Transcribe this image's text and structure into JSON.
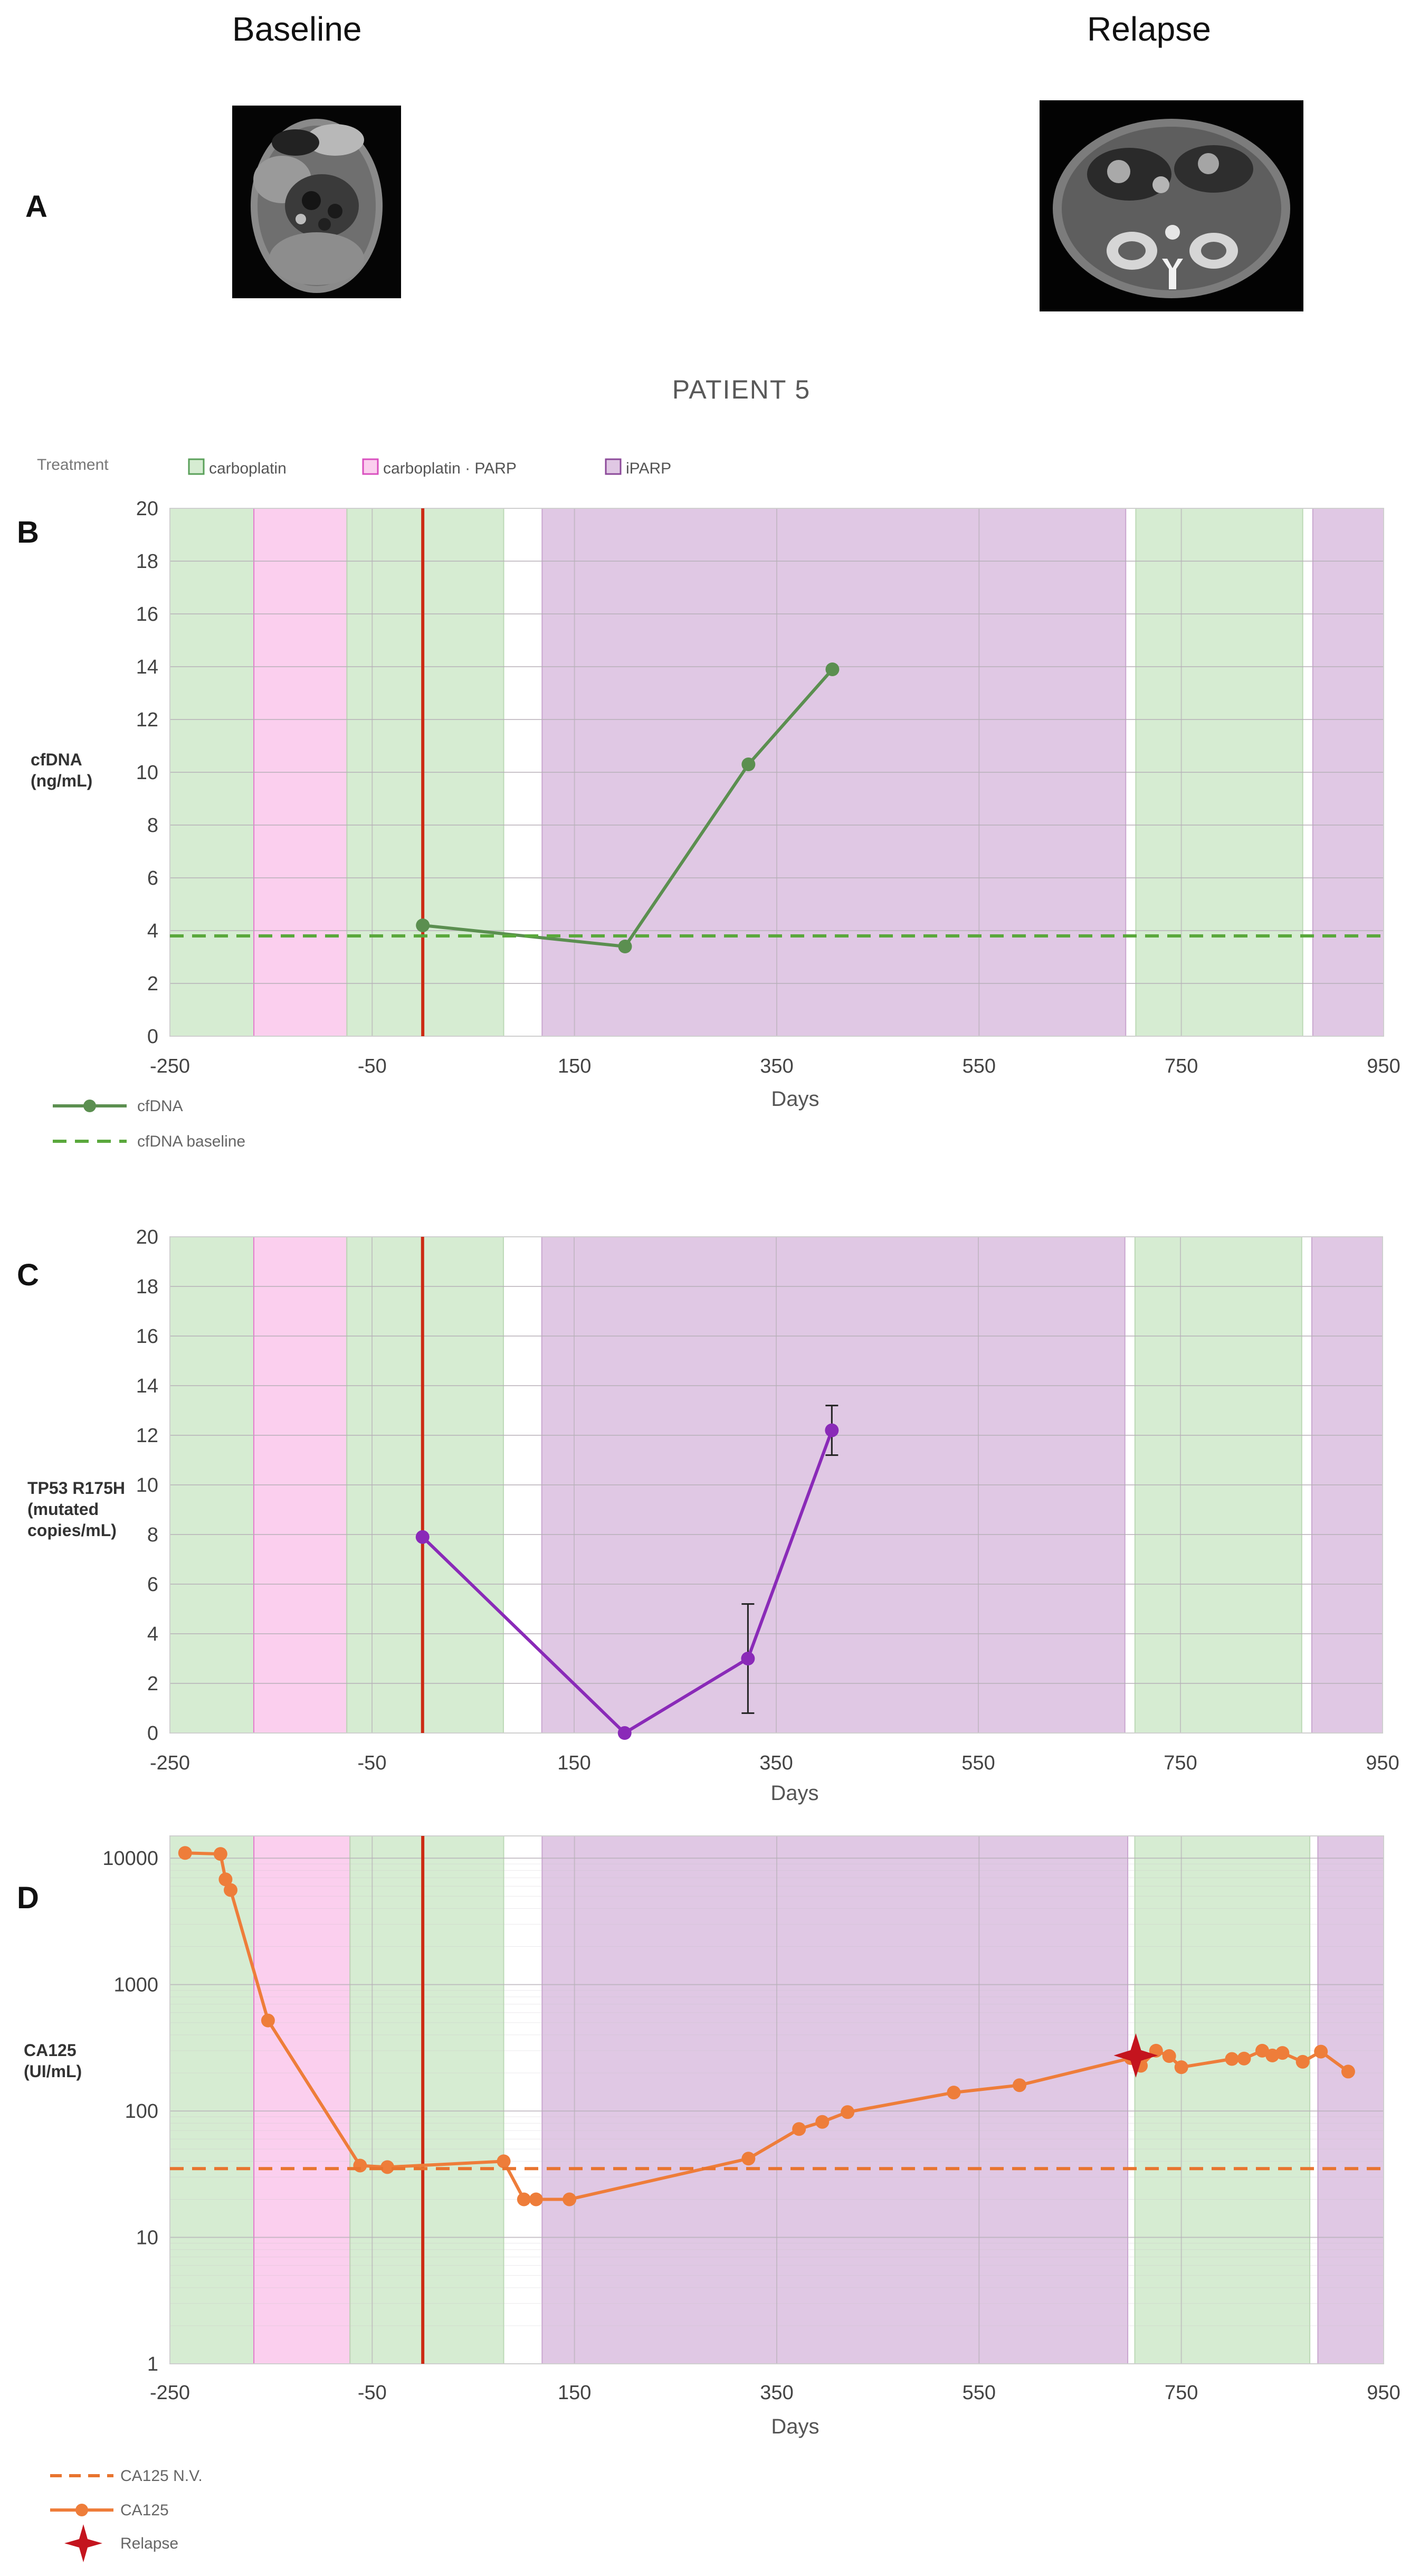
{
  "figure": {
    "panel_a": {
      "letter": "A",
      "baseline_label": "Baseline",
      "relapse_label": "Relapse",
      "image_icon": "ct-scan-image"
    },
    "title": "PATIENT 5",
    "treatment_legend": {
      "label": "Treatment",
      "items": [
        {
          "name": "carboplatin",
          "color": "#d6ecd2",
          "border": "#5aa05a"
        },
        {
          "name": "carboplatin  ·  PARP",
          "color": "#fbcfee",
          "border": "#d94fbf"
        },
        {
          "name": "iPARP",
          "color": "#e0c8e4",
          "border": "#8c4a9a"
        }
      ]
    },
    "colors": {
      "carboplatin": "#d6ecd2",
      "carbo_parp": "#fbcfee",
      "iparp": "#e0c8e4",
      "start_line": "#cc2a14",
      "cfdna_line": "#5b8f50",
      "cfdna_baseline": "#5aa83c",
      "tp53_line": "#8a2ab8",
      "ca125_line": "#ee7d3a",
      "ca125_nv": "#e8742e",
      "relapse_marker": "#c4141e"
    }
  },
  "chart_data": [
    {
      "panel": "B",
      "type": "line",
      "ylabel": "cfDNA\n(ng/mL)",
      "xlabel": "Days",
      "xlim": [
        -250,
        950
      ],
      "ylim": [
        0,
        20
      ],
      "xticks": [
        -250,
        -50,
        150,
        350,
        550,
        750,
        950
      ],
      "yticks": [
        0,
        2,
        4,
        6,
        8,
        10,
        12,
        14,
        16,
        18,
        20
      ],
      "treatment_periods": [
        {
          "treatment": "carboplatin",
          "start": -250,
          "end": -167
        },
        {
          "treatment": "carboplatin + PARP",
          "start": -167,
          "end": -75
        },
        {
          "treatment": "carboplatin",
          "start": -75,
          "end": 80
        },
        {
          "treatment": "iPARP",
          "start": 118,
          "end": 695
        },
        {
          "treatment": "carboplatin",
          "start": 705,
          "end": 870
        },
        {
          "treatment": "iPARP",
          "start": 880,
          "end": 950
        }
      ],
      "treatment_start_day": 0,
      "series": [
        {
          "name": "cfDNA",
          "x": [
            0,
            200,
            322,
            405
          ],
          "y": [
            4.2,
            3.4,
            10.3,
            13.9
          ]
        },
        {
          "name": "cfDNA baseline",
          "style": "dashed",
          "y_constant": 3.8
        }
      ],
      "legend": [
        "cfDNA",
        "cfDNA baseline"
      ]
    },
    {
      "panel": "C",
      "type": "line",
      "ylabel": "TP53 R175H\n(mutated\ncopies/mL)",
      "xlabel": "Days",
      "xlim": [
        -250,
        950
      ],
      "ylim": [
        0,
        20
      ],
      "xticks": [
        -250,
        -50,
        150,
        350,
        550,
        750,
        950
      ],
      "yticks": [
        0,
        2,
        4,
        6,
        8,
        10,
        12,
        14,
        16,
        18,
        20
      ],
      "treatment_periods": [
        {
          "treatment": "carboplatin",
          "start": -250,
          "end": -167
        },
        {
          "treatment": "carboplatin + PARP",
          "start": -167,
          "end": -75
        },
        {
          "treatment": "carboplatin",
          "start": -75,
          "end": 80
        },
        {
          "treatment": "iPARP",
          "start": 118,
          "end": 695
        },
        {
          "treatment": "carboplatin",
          "start": 705,
          "end": 870
        },
        {
          "treatment": "iPARP",
          "start": 880,
          "end": 950
        }
      ],
      "treatment_start_day": 0,
      "series": [
        {
          "name": "TP53 R175H",
          "x": [
            0,
            200,
            322,
            405
          ],
          "y": [
            7.9,
            0,
            3.0,
            12.2
          ],
          "error": [
            0,
            0,
            2.2,
            1.0
          ]
        }
      ]
    },
    {
      "panel": "D",
      "type": "line",
      "yscale": "log",
      "ylabel": "CA125\n(UI/mL)",
      "xlabel": "Days",
      "xlim": [
        -250,
        950
      ],
      "ylim": [
        1,
        15000
      ],
      "xticks": [
        -250,
        -50,
        150,
        350,
        550,
        750,
        950
      ],
      "yticks": [
        1,
        10,
        100,
        1000,
        10000
      ],
      "treatment_periods": [
        {
          "treatment": "carboplatin",
          "start": -250,
          "end": -167
        },
        {
          "treatment": "carboplatin + PARP",
          "start": -167,
          "end": -72
        },
        {
          "treatment": "carboplatin",
          "start": -72,
          "end": 80
        },
        {
          "treatment": "iPARP",
          "start": 118,
          "end": 697
        },
        {
          "treatment": "carboplatin",
          "start": 704,
          "end": 877
        },
        {
          "treatment": "iPARP",
          "start": 885,
          "end": 950
        }
      ],
      "treatment_start_day": 0,
      "series": [
        {
          "name": "CA125",
          "x": [
            -235,
            -200,
            -195,
            -190,
            -153,
            -62,
            -35,
            80,
            100,
            112,
            145,
            322,
            372,
            395,
            420,
            525,
            590,
            700,
            710,
            725,
            738,
            750,
            800,
            812,
            830,
            840,
            850,
            870,
            888,
            915
          ],
          "y": [
            11000,
            10800,
            6800,
            5600,
            520,
            37,
            36,
            40,
            20,
            20,
            20,
            42,
            72,
            82,
            98,
            140,
            160,
            262,
            228,
            300,
            272,
            222,
            258,
            260,
            300,
            275,
            288,
            245,
            295,
            205
          ]
        },
        {
          "name": "CA125 N.V.",
          "style": "dashed",
          "y_constant": 35
        }
      ],
      "relapse": {
        "x": 705,
        "y": 275,
        "label": "Relapse"
      },
      "legend": [
        "CA125 N.V.",
        "CA125",
        "Relapse"
      ]
    }
  ]
}
